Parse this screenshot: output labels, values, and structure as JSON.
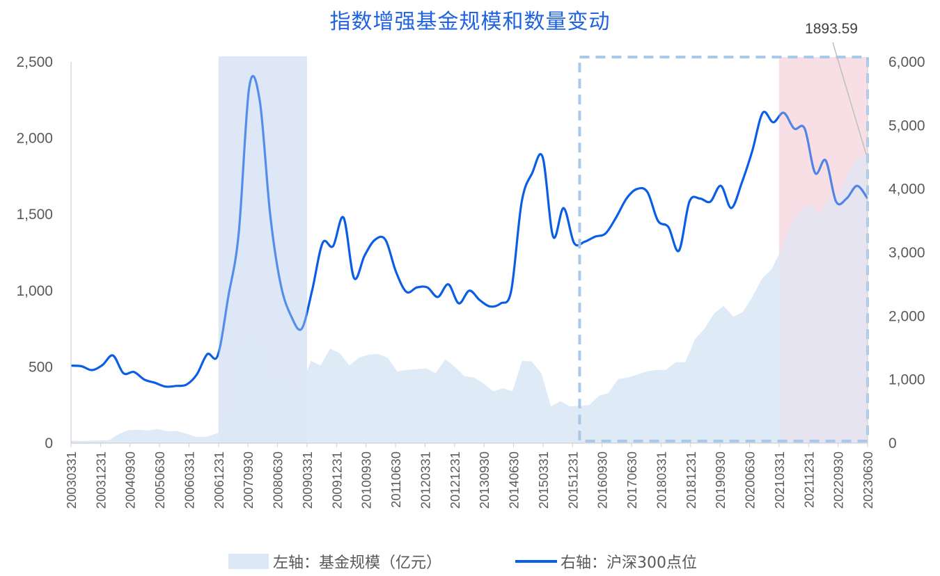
{
  "chart_data": {
    "type": "line",
    "title": "指数增强基金规模和数量变动",
    "left_axis": {
      "label": "左轴：基金规模（亿元）",
      "range": [
        0,
        2500
      ],
      "ticks": [
        "0",
        "500",
        "1,000",
        "1,500",
        "2,000",
        "2,500"
      ]
    },
    "right_axis": {
      "label": "右轴：沪深300点位",
      "range": [
        0,
        6000
      ],
      "ticks": [
        "0",
        "1,000",
        "2,000",
        "3,000",
        "4,000",
        "5,000",
        "6,000"
      ]
    },
    "x_tick_labels": [
      "20030331",
      "20031231",
      "20040930",
      "20050630",
      "20060331",
      "20061231",
      "20070930",
      "20080630",
      "20090331",
      "20091231",
      "20100930",
      "20110630",
      "20120331",
      "20121231",
      "20130930",
      "20140630",
      "20150331",
      "20151231",
      "20160930",
      "20170630",
      "20180331",
      "20181231",
      "20190930",
      "20200630",
      "20210331",
      "20211231",
      "20220930",
      "20230630"
    ],
    "series": [
      {
        "name": "左轴：基金规模（亿元）",
        "type": "area",
        "axis": "left",
        "color": "#dce8f6",
        "values": [
          17,
          14,
          16,
          18,
          20,
          60,
          85,
          88,
          82,
          92,
          78,
          80,
          62,
          42,
          40,
          60,
          80,
          210,
          620,
          700,
          500,
          420,
          390,
          320,
          380,
          540,
          510,
          620,
          590,
          510,
          560,
          580,
          585,
          560,
          470,
          480,
          485,
          490,
          460,
          550,
          500,
          440,
          430,
          390,
          340,
          360,
          340,
          540,
          535,
          460,
          240,
          275,
          240,
          245,
          250,
          310,
          330,
          420,
          430,
          450,
          470,
          480,
          480,
          530,
          530,
          680,
          750,
          850,
          900,
          830,
          860,
          960,
          1080,
          1140,
          1270,
          1440,
          1530,
          1570,
          1500,
          1600,
          1640,
          1780,
          1870,
          1893.59
        ],
        "end_value_label": "1893.59"
      },
      {
        "name": "右轴：沪深300点位",
        "type": "line",
        "axis": "right",
        "color": "#0a5ee5",
        "values": [
          1220,
          1210,
          1150,
          1230,
          1380,
          1100,
          1120,
          1000,
          950,
          890,
          900,
          920,
          1080,
          1400,
          1380,
          2300,
          3300,
          5600,
          5400,
          3600,
          2500,
          2000,
          1800,
          2400,
          3150,
          3100,
          3550,
          2600,
          2950,
          3200,
          3200,
          2700,
          2380,
          2450,
          2450,
          2300,
          2500,
          2200,
          2400,
          2250,
          2150,
          2200,
          2400,
          3800,
          4250,
          4500,
          3250,
          3700,
          3150,
          3170,
          3250,
          3300,
          3550,
          3850,
          4000,
          3950,
          3500,
          3400,
          3030,
          3800,
          3850,
          3800,
          4050,
          3700,
          4100,
          4600,
          5200,
          5050,
          5200,
          4950,
          4950,
          4250,
          4450,
          3800,
          3850,
          4050,
          3850
        ]
      }
    ],
    "shaded_periods": [
      {
        "from": "20061231",
        "to": "20090331",
        "color": "#c9daef"
      },
      {
        "from": "20160331",
        "to": "20230630",
        "style": "dashed-outline",
        "color": "#a9c9ea"
      },
      {
        "from": "20210331",
        "to": "20230630",
        "color": "#f8d3dd"
      }
    ],
    "legend": {
      "position": "bottom"
    },
    "grid": false
  }
}
